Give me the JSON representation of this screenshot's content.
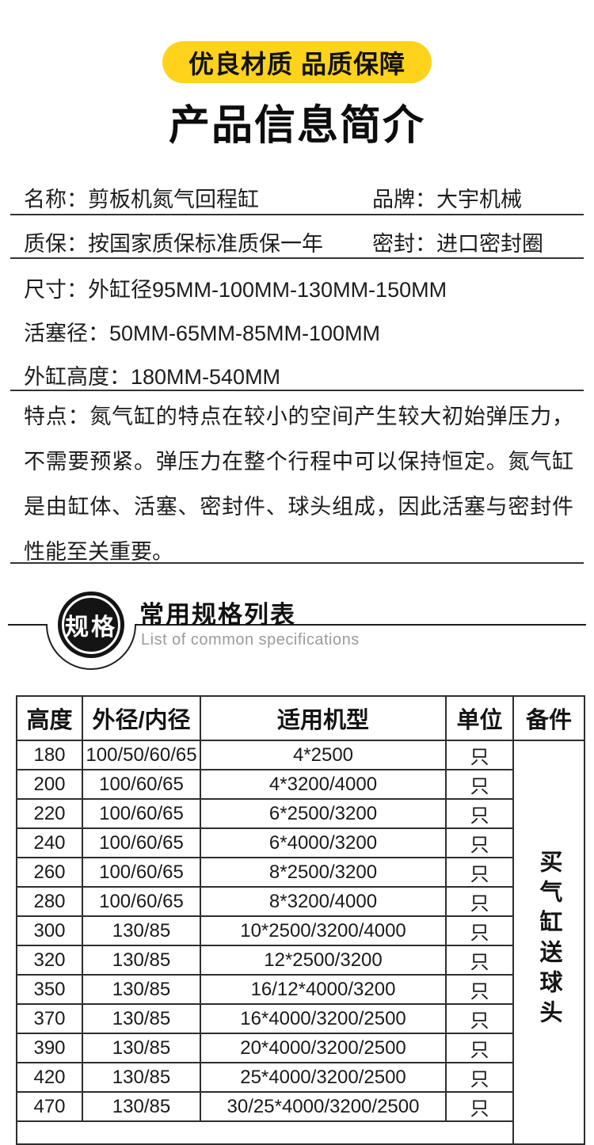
{
  "top_badge": {
    "label": "优良材质 品质保障",
    "bg_color": "#ffd21c"
  },
  "title": "产品信息简介",
  "info": {
    "row1": {
      "left": "名称：剪板机氮气回程缸",
      "right": "品牌：大宇机械"
    },
    "row2": {
      "left": "质保：按国家质保标准质保一年",
      "right": "密封：进口密封圈"
    },
    "size_lines": [
      "尺寸：外缸径95MM-100MM-130MM-150MM",
      "活塞径：50MM-65MM-85MM-100MM",
      "外缸高度：180MM-540MM"
    ],
    "features": "特点：氮气缸的特点在较小的空间产生较大初始弹压力，不需要预紧。弹压力在整个行程中可以保持恒定。氮气缸是由缸体、活塞、密封件、球头组成，因此活塞与密封件性能至关重要。"
  },
  "section_header": {
    "badge": "规格",
    "title": "常用规格列表",
    "subtitle": "List of common specifications"
  },
  "spec_table": {
    "headers": [
      "高度",
      "外径/内径",
      "适用机型",
      "单位",
      "备件"
    ],
    "rows": [
      {
        "height": "180",
        "od_id": "100/50/60/65",
        "model": "4*2500",
        "unit": "只"
      },
      {
        "height": "200",
        "od_id": "100/60/65",
        "model": "4*3200/4000",
        "unit": "只"
      },
      {
        "height": "220",
        "od_id": "100/60/65",
        "model": "6*2500/3200",
        "unit": "只"
      },
      {
        "height": "240",
        "od_id": "100/60/65",
        "model": "6*4000/3200",
        "unit": "只"
      },
      {
        "height": "260",
        "od_id": "100/60/65",
        "model": "8*2500/3200",
        "unit": "只"
      },
      {
        "height": "280",
        "od_id": "100/60/65",
        "model": "8*3200/4000",
        "unit": "只"
      },
      {
        "height": "300",
        "od_id": "130/85",
        "model": "10*2500/3200/4000",
        "unit": "只"
      },
      {
        "height": "320",
        "od_id": "130/85",
        "model": "12*2500/3200",
        "unit": "只"
      },
      {
        "height": "350",
        "od_id": "130/85",
        "model": "16/12*4000/3200",
        "unit": "只"
      },
      {
        "height": "370",
        "od_id": "130/85",
        "model": "16*4000/3200/2500",
        "unit": "只"
      },
      {
        "height": "390",
        "od_id": "130/85",
        "model": "20*4000/3200/2500",
        "unit": "只"
      },
      {
        "height": "420",
        "od_id": "130/85",
        "model": "25*4000/3200/2500",
        "unit": "只"
      },
      {
        "height": "470",
        "od_id": "130/85",
        "model": "30/25*4000/3200/2500",
        "unit": "只"
      }
    ],
    "spare_note": "买气缸送球头"
  }
}
